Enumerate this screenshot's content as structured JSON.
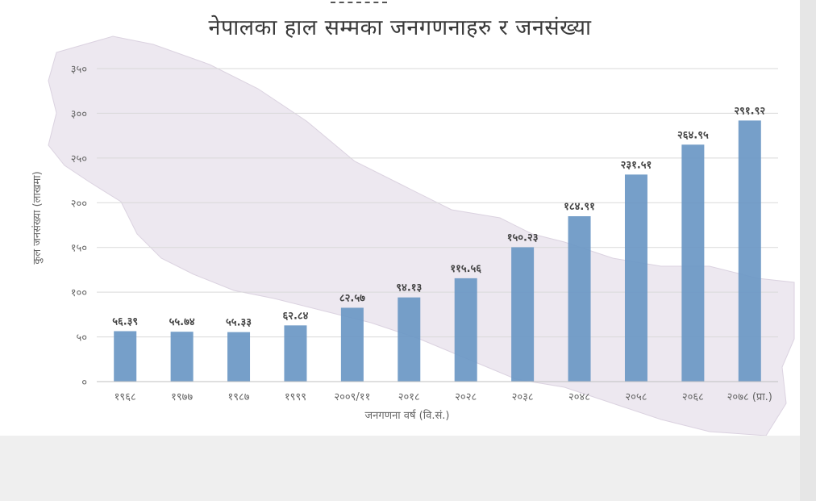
{
  "title": "नेपालका हाल सम्मका जनगणनाहरु र जनसंख्या",
  "colors": {
    "bar": "#6a97c4",
    "grid": "#d9d9d9",
    "map": "#ddd3e2",
    "background": "#ffffff"
  },
  "chart_data": {
    "type": "bar",
    "title": "नेपालका हाल सम्मका जनगणनाहरु र जनसंख्या",
    "xlabel": "जनगणना वर्ष (वि.सं.)",
    "ylabel": "कुल जनसंख्या (लाखमा)",
    "ylim": [
      0,
      350
    ],
    "yticks": [
      0,
      50,
      100,
      150,
      200,
      250,
      300,
      350
    ],
    "ytick_labels": [
      "०",
      "५०",
      "१००",
      "१५०",
      "२००",
      "२५०",
      "३००",
      "३५०"
    ],
    "grid": true,
    "categories": [
      "१९६८",
      "१९७७",
      "१९८७",
      "१९९९",
      "२००९/११",
      "२०१८",
      "२०२८",
      "२०३८",
      "२०४८",
      "२०५८",
      "२०६८",
      "२०७८ (प्रा.)"
    ],
    "values": [
      56.39,
      55.74,
      55.33,
      62.84,
      82.57,
      94.13,
      115.56,
      150.23,
      184.91,
      231.51,
      264.95,
      291.92
    ],
    "value_labels": [
      "५६.३९",
      "५५.७४",
      "५५.३३",
      "६२.८४",
      "८२.५७",
      "९४.१३",
      "११५.५६",
      "१५०.२३",
      "१८४.९१",
      "२३१.५१",
      "२६४.९५",
      "२९१.९२"
    ]
  }
}
